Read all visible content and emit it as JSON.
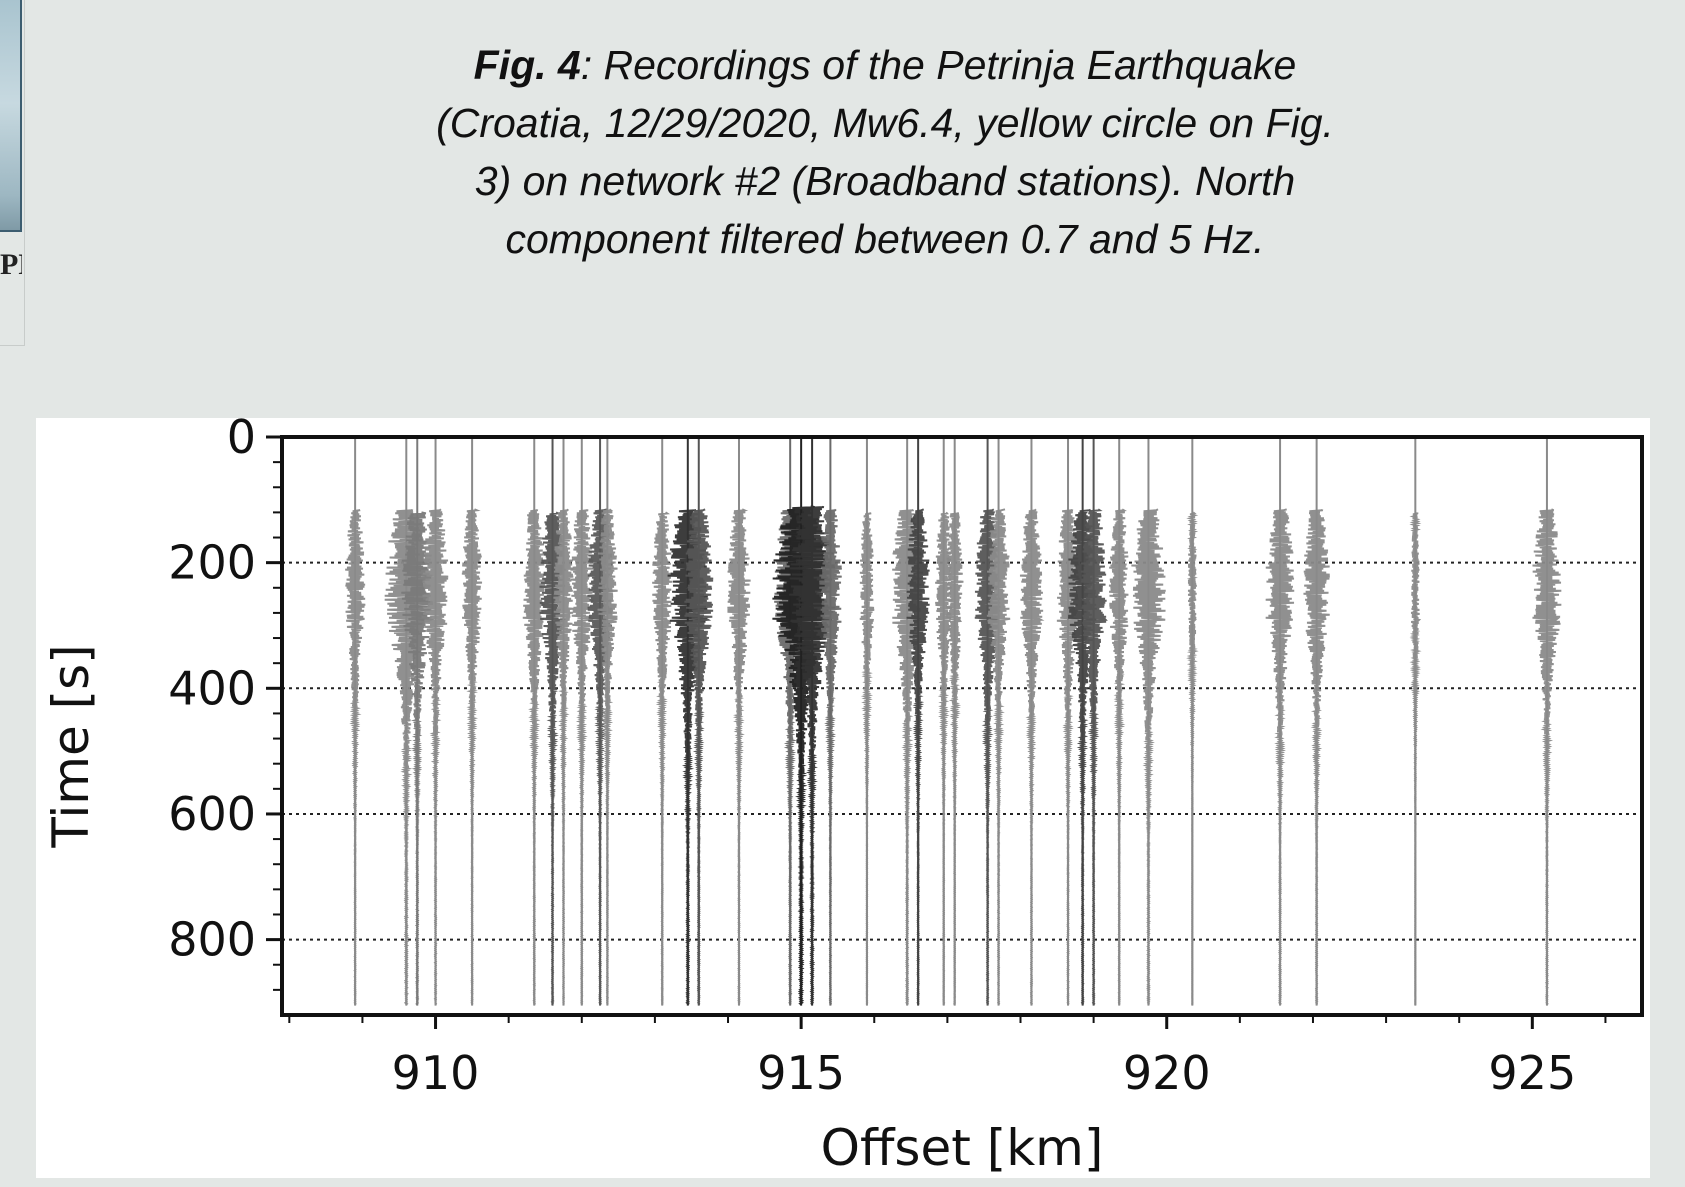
{
  "caption": {
    "fig_label": "Fig. 4",
    "line1_rest": ": Recordings of the Petrinja Earthquake",
    "line2": "(Croatia, 12/29/2020, Mw6.4, yellow circle on Fig.",
    "line3": "3) on network #2 (Broadband stations). North",
    "line4": "component filtered between 0.7 and 5 Hz."
  },
  "cropped_left_text": "PE",
  "chart_data": {
    "type": "seismogram-section",
    "xlabel": "Offset [km]",
    "ylabel": "Time [s]",
    "xlim": [
      907.9,
      926.5
    ],
    "ylim": [
      920,
      0
    ],
    "y_inverted": true,
    "xticks": [
      910,
      915,
      920,
      925
    ],
    "yticks": [
      0,
      200,
      400,
      600,
      800
    ],
    "grid": "dotted horizontal at y ticks 200, 400, 600, 800",
    "traces": [
      {
        "offset": 908.9,
        "shade": "#8a8a8a",
        "amp": 0.14,
        "onset": 115
      },
      {
        "offset": 909.6,
        "shade": "#8a8a8a",
        "amp": 0.3,
        "onset": 115
      },
      {
        "offset": 909.75,
        "shade": "#7a7a7a",
        "amp": 0.22,
        "onset": 120
      },
      {
        "offset": 910.0,
        "shade": "#8a8a8a",
        "amp": 0.18,
        "onset": 115
      },
      {
        "offset": 910.5,
        "shade": "#8a8a8a",
        "amp": 0.14,
        "onset": 115
      },
      {
        "offset": 911.35,
        "shade": "#8a8a8a",
        "amp": 0.16,
        "onset": 115
      },
      {
        "offset": 911.6,
        "shade": "#555555",
        "amp": 0.18,
        "onset": 120
      },
      {
        "offset": 911.75,
        "shade": "#8a8a8a",
        "amp": 0.14,
        "onset": 115
      },
      {
        "offset": 912.0,
        "shade": "#8a8a8a",
        "amp": 0.16,
        "onset": 115
      },
      {
        "offset": 912.25,
        "shade": "#5a5a5a",
        "amp": 0.18,
        "onset": 115
      },
      {
        "offset": 912.35,
        "shade": "#8a8a8a",
        "amp": 0.14,
        "onset": 115
      },
      {
        "offset": 913.1,
        "shade": "#8a8a8a",
        "amp": 0.14,
        "onset": 120
      },
      {
        "offset": 913.45,
        "shade": "#333333",
        "amp": 0.28,
        "onset": 115
      },
      {
        "offset": 913.6,
        "shade": "#555555",
        "amp": 0.2,
        "onset": 115
      },
      {
        "offset": 914.15,
        "shade": "#8a8a8a",
        "amp": 0.16,
        "onset": 115
      },
      {
        "offset": 914.85,
        "shade": "#6a6a6a",
        "amp": 0.22,
        "onset": 115
      },
      {
        "offset": 915.0,
        "shade": "#222222",
        "amp": 0.4,
        "onset": 110
      },
      {
        "offset": 915.15,
        "shade": "#333333",
        "amp": 0.32,
        "onset": 110
      },
      {
        "offset": 915.4,
        "shade": "#6a6a6a",
        "amp": 0.16,
        "onset": 115
      },
      {
        "offset": 915.9,
        "shade": "#8a8a8a",
        "amp": 0.1,
        "onset": 120
      },
      {
        "offset": 916.45,
        "shade": "#8a8a8a",
        "amp": 0.22,
        "onset": 115
      },
      {
        "offset": 916.6,
        "shade": "#444444",
        "amp": 0.16,
        "onset": 115
      },
      {
        "offset": 916.95,
        "shade": "#8a8a8a",
        "amp": 0.12,
        "onset": 120
      },
      {
        "offset": 917.1,
        "shade": "#8a8a8a",
        "amp": 0.12,
        "onset": 120
      },
      {
        "offset": 917.55,
        "shade": "#555555",
        "amp": 0.18,
        "onset": 115
      },
      {
        "offset": 917.7,
        "shade": "#8a8a8a",
        "amp": 0.16,
        "onset": 115
      },
      {
        "offset": 918.15,
        "shade": "#8a8a8a",
        "amp": 0.16,
        "onset": 115
      },
      {
        "offset": 918.65,
        "shade": "#8a8a8a",
        "amp": 0.16,
        "onset": 115
      },
      {
        "offset": 918.85,
        "shade": "#444444",
        "amp": 0.2,
        "onset": 115
      },
      {
        "offset": 919.0,
        "shade": "#555555",
        "amp": 0.18,
        "onset": 115
      },
      {
        "offset": 919.35,
        "shade": "#8a8a8a",
        "amp": 0.14,
        "onset": 115
      },
      {
        "offset": 919.75,
        "shade": "#8a8a8a",
        "amp": 0.24,
        "onset": 115
      },
      {
        "offset": 920.35,
        "shade": "#8a8a8a",
        "amp": 0.06,
        "onset": 120
      },
      {
        "offset": 921.55,
        "shade": "#8a8a8a",
        "amp": 0.2,
        "onset": 115
      },
      {
        "offset": 922.05,
        "shade": "#8a8a8a",
        "amp": 0.18,
        "onset": 115
      },
      {
        "offset": 923.4,
        "shade": "#8a8a8a",
        "amp": 0.06,
        "onset": 120
      },
      {
        "offset": 925.2,
        "shade": "#8a8a8a",
        "amp": 0.2,
        "onset": 115
      }
    ]
  },
  "colors": {
    "page_background": "#e3e7e5",
    "figure_background": "#ffffff",
    "axis_color": "#111111"
  }
}
